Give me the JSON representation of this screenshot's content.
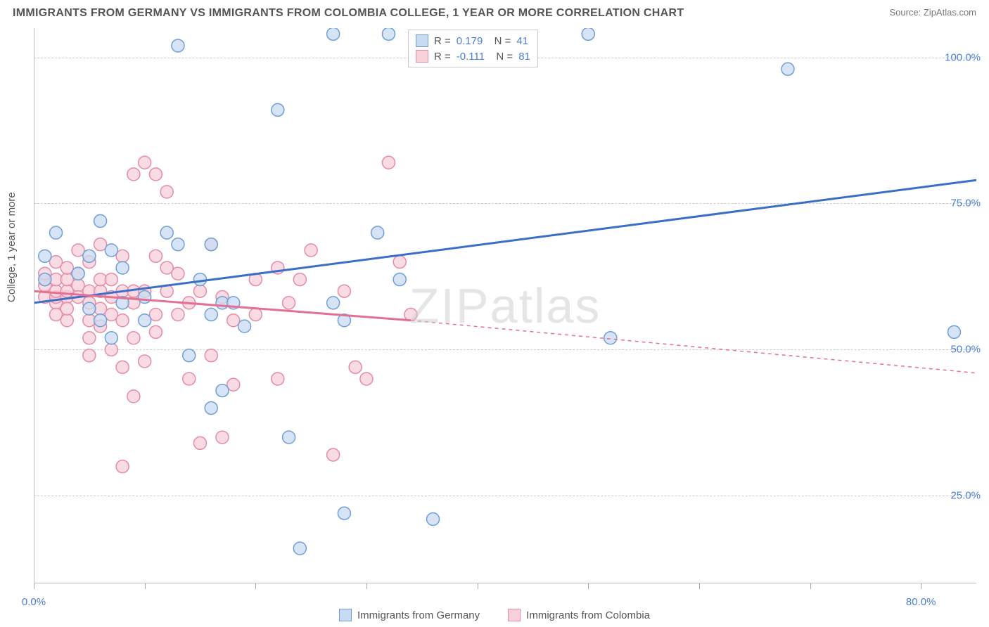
{
  "header": {
    "title": "IMMIGRANTS FROM GERMANY VS IMMIGRANTS FROM COLOMBIA COLLEGE, 1 YEAR OR MORE CORRELATION CHART",
    "source": "Source: ZipAtlas.com"
  },
  "chart": {
    "type": "scatter",
    "ylabel": "College, 1 year or more",
    "watermark": "ZIPatlas",
    "background_color": "#ffffff",
    "grid_color": "#cccccc",
    "axis_color": "#bbbbbb",
    "text_color": "#555555",
    "value_color": "#4a7dd6",
    "xlim": [
      0,
      85
    ],
    "ylim": [
      10,
      105
    ],
    "xticks": [
      0,
      10,
      20,
      30,
      40,
      50,
      60,
      70,
      80
    ],
    "xtick_labels": {
      "0": "0.0%",
      "80": "80.0%"
    },
    "yticks": [
      25,
      50,
      75,
      100
    ],
    "ytick_labels": {
      "25": "25.0%",
      "50": "50.0%",
      "75": "75.0%",
      "100": "100.0%"
    },
    "marker_radius": 9,
    "marker_stroke_width": 1.5,
    "trend_line_width": 3,
    "series": [
      {
        "name": "Immigrants from Germany",
        "fill": "#c9dbf2",
        "stroke": "#6f9fd8",
        "line_color": "#3a6fc9",
        "R": "0.179",
        "N": "41",
        "trend": {
          "x1": 0,
          "y1": 58,
          "x2": 85,
          "y2": 79,
          "dash_after_x": 85
        },
        "points": [
          [
            1,
            62
          ],
          [
            1,
            66
          ],
          [
            2,
            70
          ],
          [
            4,
            63
          ],
          [
            5,
            57
          ],
          [
            5,
            66
          ],
          [
            6,
            72
          ],
          [
            6,
            55
          ],
          [
            7,
            67
          ],
          [
            7,
            52
          ],
          [
            8,
            64
          ],
          [
            8,
            58
          ],
          [
            10,
            55
          ],
          [
            10,
            59
          ],
          [
            12,
            70
          ],
          [
            13,
            68
          ],
          [
            13,
            102
          ],
          [
            14,
            49
          ],
          [
            15,
            62
          ],
          [
            16,
            68
          ],
          [
            16,
            40
          ],
          [
            16,
            56
          ],
          [
            17,
            43
          ],
          [
            17,
            58
          ],
          [
            18,
            58
          ],
          [
            19,
            54
          ],
          [
            22,
            91
          ],
          [
            23,
            35
          ],
          [
            24,
            16
          ],
          [
            27,
            58
          ],
          [
            27,
            104
          ],
          [
            28,
            55
          ],
          [
            28,
            22
          ],
          [
            31,
            70
          ],
          [
            32,
            104
          ],
          [
            33,
            62
          ],
          [
            36,
            21
          ],
          [
            50,
            104
          ],
          [
            52,
            52
          ],
          [
            68,
            98
          ],
          [
            83,
            53
          ]
        ]
      },
      {
        "name": "Immigrants from Colombia",
        "fill": "#f7d0da",
        "stroke": "#e58ba6",
        "line_color": "#e36f92",
        "R": "-0.111",
        "N": "81",
        "trend": {
          "x1": 0,
          "y1": 60,
          "x2": 34,
          "y2": 55,
          "dash_after_x": 34,
          "dash_x2": 85,
          "dash_y2": 46
        },
        "points": [
          [
            1,
            59
          ],
          [
            1,
            61
          ],
          [
            1,
            62
          ],
          [
            1,
            63
          ],
          [
            2,
            58
          ],
          [
            2,
            59
          ],
          [
            2,
            60
          ],
          [
            2,
            62
          ],
          [
            2,
            65
          ],
          [
            2,
            56
          ],
          [
            3,
            59
          ],
          [
            3,
            60
          ],
          [
            3,
            62
          ],
          [
            3,
            55
          ],
          [
            3,
            57
          ],
          [
            3,
            64
          ],
          [
            4,
            61
          ],
          [
            4,
            59
          ],
          [
            4,
            63
          ],
          [
            4,
            67
          ],
          [
            5,
            60
          ],
          [
            5,
            58
          ],
          [
            5,
            55
          ],
          [
            5,
            52
          ],
          [
            5,
            65
          ],
          [
            5,
            49
          ],
          [
            6,
            60
          ],
          [
            6,
            62
          ],
          [
            6,
            57
          ],
          [
            6,
            54
          ],
          [
            6,
            68
          ],
          [
            7,
            62
          ],
          [
            7,
            56
          ],
          [
            7,
            59
          ],
          [
            7,
            50
          ],
          [
            8,
            55
          ],
          [
            8,
            47
          ],
          [
            8,
            60
          ],
          [
            8,
            66
          ],
          [
            8,
            30
          ],
          [
            9,
            58
          ],
          [
            9,
            60
          ],
          [
            9,
            52
          ],
          [
            9,
            42
          ],
          [
            9,
            80
          ],
          [
            10,
            60
          ],
          [
            10,
            82
          ],
          [
            10,
            48
          ],
          [
            11,
            56
          ],
          [
            11,
            66
          ],
          [
            11,
            80
          ],
          [
            11,
            53
          ],
          [
            12,
            60
          ],
          [
            12,
            64
          ],
          [
            12,
            77
          ],
          [
            13,
            63
          ],
          [
            13,
            56
          ],
          [
            14,
            45
          ],
          [
            14,
            58
          ],
          [
            15,
            60
          ],
          [
            15,
            34
          ],
          [
            16,
            68
          ],
          [
            16,
            49
          ],
          [
            17,
            59
          ],
          [
            17,
            35
          ],
          [
            18,
            55
          ],
          [
            18,
            44
          ],
          [
            20,
            56
          ],
          [
            20,
            62
          ],
          [
            22,
            64
          ],
          [
            22,
            45
          ],
          [
            23,
            58
          ],
          [
            24,
            62
          ],
          [
            25,
            67
          ],
          [
            27,
            32
          ],
          [
            28,
            60
          ],
          [
            29,
            47
          ],
          [
            30,
            45
          ],
          [
            32,
            82
          ],
          [
            33,
            65
          ],
          [
            34,
            56
          ]
        ]
      }
    ],
    "bottom_legend": [
      {
        "label": "Immigrants from Germany",
        "fill": "#c9dbf2",
        "stroke": "#6f9fd8"
      },
      {
        "label": "Immigrants from Colombia",
        "fill": "#f7d0da",
        "stroke": "#e58ba6"
      }
    ]
  }
}
